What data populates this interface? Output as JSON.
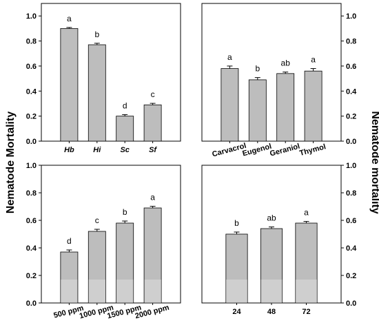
{
  "figure": {
    "left_ylabel": "Nematode Mortality",
    "right_ylabel": "Nematode mortality"
  },
  "chart_data": [
    {
      "panel": "top-left",
      "type": "bar",
      "categories": [
        "Hb",
        "Hi",
        "Sc",
        "Sf"
      ],
      "values": [
        0.9,
        0.77,
        0.2,
        0.29
      ],
      "errors": [
        0.008,
        0.012,
        0.012,
        0.012
      ],
      "letters": [
        "a",
        "b",
        "d",
        "c"
      ],
      "ylim": [
        0,
        1.1
      ],
      "yticks": [
        "0.0",
        "0.2",
        "0.4",
        "0.6",
        "0.8",
        "1.0"
      ],
      "y_axis_side": "left",
      "tick_style": "bold-italic",
      "tick_rotation": 0
    },
    {
      "panel": "top-right",
      "type": "bar",
      "categories": [
        "Carvacrol",
        "Eugenol",
        "Geraniol",
        "Thymol"
      ],
      "values": [
        0.58,
        0.49,
        0.54,
        0.56
      ],
      "errors": [
        0.02,
        0.018,
        0.012,
        0.02
      ],
      "letters": [
        "a",
        "b",
        "ab",
        "a"
      ],
      "ylim": [
        0,
        1.1
      ],
      "yticks": [
        "0.0",
        "0.2",
        "0.4",
        "0.6",
        "0.8",
        "1.0"
      ],
      "y_axis_side": "right",
      "tick_style": "bold",
      "tick_rotation": -15
    },
    {
      "panel": "bottom-left",
      "type": "bar",
      "categories": [
        "500 ppm",
        "1000 ppm",
        "1500 ppm",
        "2000 ppm"
      ],
      "values": [
        0.37,
        0.52,
        0.58,
        0.69
      ],
      "errors": [
        0.015,
        0.015,
        0.015,
        0.012
      ],
      "letters": [
        "d",
        "c",
        "b",
        "a"
      ],
      "ylim": [
        0,
        1.0
      ],
      "yticks": [
        "0.0",
        "0.2",
        "0.4",
        "0.6",
        "0.8",
        "1.0"
      ],
      "y_axis_side": "left",
      "tick_style": "bold",
      "tick_rotation": -15
    },
    {
      "panel": "bottom-right",
      "type": "bar",
      "categories": [
        "24",
        "48",
        "72"
      ],
      "values": [
        0.5,
        0.54,
        0.58
      ],
      "errors": [
        0.015,
        0.012,
        0.012
      ],
      "letters": [
        "b",
        "ab",
        "a"
      ],
      "ylim": [
        0,
        1.0
      ],
      "yticks": [
        "0.0",
        "0.2",
        "0.4",
        "0.6",
        "0.8",
        "1.0"
      ],
      "y_axis_side": "right",
      "tick_style": "bold",
      "tick_rotation": 0
    }
  ],
  "colors": {
    "bar_fill": "#bdbdbd",
    "bar_fill_light": "#cfcfcf",
    "bar_stroke": "#000000",
    "axis": "#000000"
  }
}
